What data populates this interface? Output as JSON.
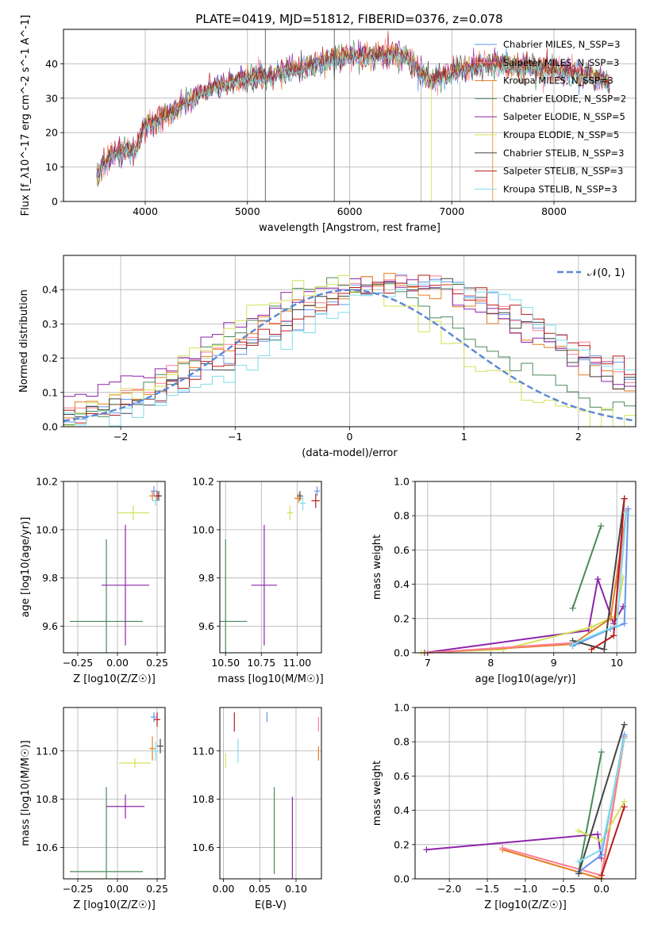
{
  "colors": {
    "Chabrier MILES": "#6495ed",
    "Salpeter MILES": "#ff7f95",
    "Kroupa MILES": "#e67e22",
    "Chabrier ELODIE": "#4a8a5a",
    "Salpeter ELODIE": "#8e24aa",
    "Kroupa ELODIE": "#d4e157",
    "Chabrier STELIB": "#444444",
    "Salpeter STELIB": "#b71c1c",
    "Kroupa STELIB": "#80deea",
    "normal": "#5b86d6"
  },
  "chart_data": [
    {
      "type": "line",
      "title": "PLATE=0419, MJD=51812, FIBERID=0376, z=0.078",
      "xlabel": "wavelength [Angstrom, rest frame]",
      "ylabel": "Flux [f_λ10^-17 erg cm^-2 s^-1 A^-1]",
      "xlim": [
        3200,
        8800
      ],
      "ylim": [
        0,
        50
      ],
      "xticks": [
        "4000",
        "5000",
        "6000",
        "7000",
        "8000"
      ],
      "yticks": [
        "0",
        "10",
        "20",
        "30",
        "40"
      ],
      "legend_position": "top-right",
      "legend": [
        "Chabrier MILES, N_SSP=3",
        "Salpeter MILES, N_SSP=3",
        "Kroupa MILES, N_SSP=3",
        "Chabrier ELODIE, N_SSP=2",
        "Salpeter ELODIE, N_SSP=5",
        "Kroupa ELODIE, N_SSP=5",
        "Chabrier STELIB, N_SSP=3",
        "Salpeter STELIB, N_SSP=3",
        "Kroupa STELIB, N_SSP=3"
      ],
      "continuum_points": [
        [
          3520,
          8
        ],
        [
          3600,
          12
        ],
        [
          3700,
          15
        ],
        [
          3800,
          16
        ],
        [
          3900,
          16
        ],
        [
          4000,
          23
        ],
        [
          4100,
          24
        ],
        [
          4200,
          26
        ],
        [
          4300,
          27
        ],
        [
          4400,
          30
        ],
        [
          4600,
          33
        ],
        [
          4800,
          35
        ],
        [
          5000,
          37
        ],
        [
          5200,
          37
        ],
        [
          5400,
          39
        ],
        [
          5600,
          40
        ],
        [
          5800,
          42
        ],
        [
          6000,
          43
        ],
        [
          6200,
          43
        ],
        [
          6400,
          44
        ],
        [
          6550,
          43
        ],
        [
          6700,
          38
        ],
        [
          6800,
          36
        ],
        [
          6900,
          37
        ],
        [
          7000,
          38
        ],
        [
          7200,
          40
        ],
        [
          7400,
          41
        ],
        [
          7600,
          40
        ],
        [
          7800,
          40
        ],
        [
          8000,
          39
        ],
        [
          8200,
          38
        ],
        [
          8400,
          37
        ],
        [
          8550,
          35
        ]
      ]
    },
    {
      "type": "step",
      "xlabel": "(data-model)/error",
      "ylabel": "Normed distribution",
      "xlim": [
        -2.5,
        2.5
      ],
      "ylim": [
        0,
        0.5
      ],
      "xticks": [
        "−2",
        "−1",
        "0",
        "1",
        "2"
      ],
      "yticks": [
        "0.0",
        "0.1",
        "0.2",
        "0.3",
        "0.4"
      ],
      "legend": "𝒩(0, 1)",
      "legend_position": "top-right",
      "curve": "standard normal pdf"
    },
    {
      "type": "errorbar",
      "xlabel": "Z [log10(Z/Z☉)]",
      "ylabel": "age [log10(age/yr)]",
      "xlim": [
        -0.34,
        0.3
      ],
      "ylim": [
        9.49,
        10.2
      ],
      "xticks": [
        "−0.25",
        "0.00",
        "0.25"
      ],
      "yticks": [
        "9.6",
        "9.8",
        "10.0",
        "10.2"
      ],
      "points": [
        {
          "model": "Chabrier ELODIE",
          "x": -0.07,
          "y": 9.62,
          "xerr": 0.23,
          "yerr": 0.34
        },
        {
          "model": "Salpeter ELODIE",
          "x": 0.05,
          "y": 9.77,
          "xerr": 0.15,
          "yerr": 0.25
        },
        {
          "model": "Kroupa ELODIE",
          "x": 0.1,
          "y": 10.07,
          "xerr": 0.1,
          "yerr": 0.03
        },
        {
          "model": "Chabrier MILES",
          "x": 0.23,
          "y": 10.16,
          "xerr": 0.02,
          "yerr": 0.02
        },
        {
          "model": "Kroupa MILES",
          "x": 0.22,
          "y": 10.14,
          "xerr": 0.02,
          "yerr": 0.02
        },
        {
          "model": "Chabrier STELIB",
          "x": 0.26,
          "y": 10.14,
          "xerr": 0.02,
          "yerr": 0.02
        },
        {
          "model": "Salpeter STELIB",
          "x": 0.25,
          "y": 10.14,
          "xerr": 0.02,
          "yerr": 0.02
        },
        {
          "model": "Kroupa STELIB",
          "x": 0.24,
          "y": 10.12,
          "xerr": 0.02,
          "yerr": 0.02
        }
      ]
    },
    {
      "type": "errorbar",
      "xlabel": "mass [log10(M/M☉)]",
      "ylabel": "",
      "xlim": [
        10.46,
        11.17
      ],
      "ylim": [
        9.49,
        10.2
      ],
      "xticks": [
        "10.50",
        "10.75",
        "11.00"
      ],
      "yticks": [
        "9.6",
        "9.8",
        "10.0",
        "10.2"
      ],
      "points": [
        {
          "model": "Chabrier ELODIE",
          "x": 10.5,
          "y": 9.62,
          "xerr": 0.15,
          "yerr": 0.34
        },
        {
          "model": "Salpeter ELODIE",
          "x": 10.77,
          "y": 9.77,
          "xerr": 0.09,
          "yerr": 0.25
        },
        {
          "model": "Kroupa ELODIE",
          "x": 10.95,
          "y": 10.07,
          "xerr": 0.02,
          "yerr": 0.03
        },
        {
          "model": "Chabrier STELIB",
          "x": 11.02,
          "y": 10.14,
          "xerr": 0.02,
          "yerr": 0.02
        },
        {
          "model": "Kroupa MILES",
          "x": 11.01,
          "y": 10.13,
          "xerr": 0.03,
          "yerr": 0.02
        },
        {
          "model": "Salpeter STELIB",
          "x": 11.13,
          "y": 10.12,
          "xerr": 0.03,
          "yerr": 0.03
        },
        {
          "model": "Chabrier MILES",
          "x": 11.14,
          "y": 10.16,
          "xerr": 0.02,
          "yerr": 0.02
        },
        {
          "model": "Kroupa STELIB",
          "x": 11.04,
          "y": 10.11,
          "xerr": 0.02,
          "yerr": 0.03
        }
      ]
    },
    {
      "type": "line",
      "xlabel": "age [log10(age/yr)]",
      "ylabel": "mass weight",
      "xlim": [
        6.8,
        10.3
      ],
      "ylim": [
        0,
        1
      ],
      "xticks": [
        "7",
        "8",
        "9",
        "10"
      ],
      "yticks": [
        "0.0",
        "0.2",
        "0.4",
        "0.6",
        "0.8",
        "1.0"
      ],
      "series": [
        {
          "name": "Salpeter ELODIE",
          "points": [
            [
              6.95,
              0.0
            ],
            [
              9.55,
              0.13
            ],
            [
              9.7,
              0.43
            ],
            [
              9.95,
              0.17
            ],
            [
              10.1,
              0.27
            ]
          ]
        },
        {
          "name": "Kroupa ELODIE",
          "points": [
            [
              6.9,
              0.0
            ],
            [
              8.2,
              0.02
            ],
            [
              9.6,
              0.15
            ],
            [
              10.0,
              0.22
            ],
            [
              10.1,
              0.44
            ]
          ]
        },
        {
          "name": "Chabrier ELODIE",
          "points": [
            [
              9.3,
              0.26
            ],
            [
              9.75,
              0.74
            ]
          ]
        },
        {
          "name": "Kroupa MILES",
          "points": [
            [
              7.0,
              0.0
            ],
            [
              9.3,
              0.05
            ],
            [
              9.9,
              0.2
            ],
            [
              10.15,
              0.82
            ]
          ]
        },
        {
          "name": "Salpeter MILES",
          "points": [
            [
              7.0,
              0.0
            ],
            [
              9.4,
              0.06
            ],
            [
              9.95,
              0.15
            ],
            [
              10.15,
              0.83
            ]
          ]
        },
        {
          "name": "Chabrier MILES",
          "points": [
            [
              9.3,
              0.04
            ],
            [
              9.9,
              0.14
            ],
            [
              10.12,
              0.17
            ],
            [
              10.18,
              0.84
            ]
          ]
        },
        {
          "name": "Chabrier STELIB",
          "points": [
            [
              9.3,
              0.07
            ],
            [
              9.8,
              0.02
            ],
            [
              10.12,
              0.9
            ]
          ]
        },
        {
          "name": "Salpeter STELIB",
          "points": [
            [
              9.6,
              0.02
            ],
            [
              9.95,
              0.1
            ],
            [
              10.12,
              0.9
            ]
          ]
        },
        {
          "name": "Kroupa STELIB",
          "points": [
            [
              9.3,
              0.05
            ],
            [
              10.0,
              0.16
            ],
            [
              10.15,
              0.82
            ]
          ]
        }
      ]
    },
    {
      "type": "errorbar",
      "xlabel": "Z [log10(Z/Z☉)]",
      "ylabel": "mass [log10(M/M☉)]",
      "xlim": [
        -0.34,
        0.3
      ],
      "ylim": [
        10.47,
        11.18
      ],
      "xticks": [
        "−0.25",
        "0.00",
        "0.25"
      ],
      "yticks": [
        "10.6",
        "10.8",
        "11.0"
      ],
      "points": [
        {
          "model": "Chabrier ELODIE",
          "x": -0.07,
          "y": 10.5,
          "xerr": 0.23,
          "yerr": 0.35
        },
        {
          "model": "Salpeter ELODIE",
          "x": 0.05,
          "y": 10.77,
          "xerr": 0.12,
          "yerr": 0.05
        },
        {
          "model": "Kroupa ELODIE",
          "x": 0.11,
          "y": 10.95,
          "xerr": 0.1,
          "yerr": 0.02
        },
        {
          "model": "Kroupa MILES",
          "x": 0.22,
          "y": 11.01,
          "xerr": 0.02,
          "yerr": 0.05
        },
        {
          "model": "Chabrier MILES",
          "x": 0.23,
          "y": 11.14,
          "xerr": 0.02,
          "yerr": 0.02
        },
        {
          "model": "Salpeter STELIB",
          "x": 0.25,
          "y": 11.13,
          "xerr": 0.02,
          "yerr": 0.03
        },
        {
          "model": "Chabrier STELIB",
          "x": 0.27,
          "y": 11.02,
          "xerr": 0.02,
          "yerr": 0.03
        },
        {
          "model": "Kroupa STELIB",
          "x": 0.24,
          "y": 11.0,
          "xerr": 0.02,
          "yerr": 0.04
        }
      ]
    },
    {
      "type": "errorbar",
      "xlabel": "E(B-V)",
      "ylabel": "",
      "xlim": [
        -0.005,
        0.135
      ],
      "ylim": [
        10.47,
        11.18
      ],
      "xticks": [
        "0.00",
        "0.05",
        "0.10"
      ],
      "yticks": [
        "10.6",
        "10.8",
        "11.0"
      ],
      "points": [
        {
          "model": "Chabrier ELODIE",
          "x": 0.07,
          "y": 10.67,
          "yerr": 0.18
        },
        {
          "model": "Salpeter ELODIE",
          "x": 0.095,
          "y": 10.64,
          "yerr": 0.17
        },
        {
          "model": "Kroupa ELODIE",
          "x": 0.003,
          "y": 10.96,
          "yerr": 0.03
        },
        {
          "model": "Kroupa STELIB",
          "x": 0.02,
          "y": 11.0,
          "yerr": 0.05
        },
        {
          "model": "Salpeter STELIB",
          "x": 0.015,
          "y": 11.12,
          "yerr": 0.04
        },
        {
          "model": "Chabrier MILES",
          "x": 0.06,
          "y": 11.14,
          "yerr": 0.02
        },
        {
          "model": "Salpeter MILES",
          "x": 0.131,
          "y": 11.11,
          "yerr": 0.03
        },
        {
          "model": "Kroupa MILES",
          "x": 0.131,
          "y": 10.99,
          "yerr": 0.03
        }
      ]
    },
    {
      "type": "line",
      "xlabel": "Z [log10(Z/Z☉)]",
      "ylabel": "mass weight",
      "xlim": [
        -2.45,
        0.45
      ],
      "ylim": [
        0,
        1
      ],
      "xticks": [
        "−2.0",
        "−1.5",
        "−1.0",
        "−0.5",
        "0.0"
      ],
      "yticks": [
        "0.0",
        "0.2",
        "0.4",
        "0.6",
        "0.8",
        "1.0"
      ],
      "series": [
        {
          "name": "Salpeter ELODIE",
          "points": [
            [
              -2.3,
              0.17
            ],
            [
              -0.05,
              0.26
            ],
            [
              0.0,
              0.12
            ]
          ]
        },
        {
          "name": "Kroupa MILES",
          "points": [
            [
              -1.3,
              0.17
            ],
            [
              0.0,
              0.0
            ],
            [
              0.3,
              0.82
            ]
          ]
        },
        {
          "name": "Salpeter MILES",
          "points": [
            [
              -1.3,
              0.18
            ],
            [
              0.0,
              0.02
            ],
            [
              0.3,
              0.83
            ]
          ]
        },
        {
          "name": "Chabrier ELODIE",
          "points": [
            [
              -0.3,
              0.04
            ],
            [
              0.0,
              0.74
            ]
          ]
        },
        {
          "name": "Kroupa ELODIE",
          "points": [
            [
              -0.3,
              0.28
            ],
            [
              0.0,
              0.22
            ],
            [
              0.3,
              0.45
            ]
          ]
        },
        {
          "name": "Chabrier MILES",
          "points": [
            [
              -0.3,
              0.04
            ],
            [
              0.0,
              0.14
            ],
            [
              0.3,
              0.84
            ]
          ]
        },
        {
          "name": "Chabrier STELIB",
          "points": [
            [
              -0.3,
              0.03
            ],
            [
              0.3,
              0.9
            ]
          ]
        },
        {
          "name": "Salpeter STELIB",
          "points": [
            [
              0.0,
              0.02
            ],
            [
              0.3,
              0.42
            ]
          ]
        },
        {
          "name": "Kroupa STELIB",
          "points": [
            [
              -0.3,
              0.1
            ],
            [
              0.0,
              0.17
            ],
            [
              0.3,
              0.82
            ]
          ]
        }
      ]
    }
  ]
}
